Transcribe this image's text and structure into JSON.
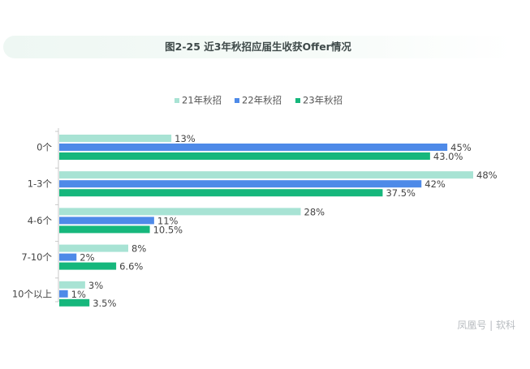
{
  "title": "图2-25 近3年秋招应届生收获Offer情况",
  "watermark": "凤凰号 | 软科",
  "colors": {
    "s21": "#a8e3d4",
    "s22": "#4e8ae8",
    "s23": "#16b77c",
    "axis": "#c8c8c8",
    "text": "#444444"
  },
  "chart_data": {
    "type": "bar",
    "orientation": "horizontal",
    "title": "图2-25 近3年秋招应届生收获Offer情况",
    "legend_position": "top",
    "categories": [
      "0个",
      "1-3个",
      "4-6个",
      "7-10个",
      "10个以上"
    ],
    "series": [
      {
        "name": "21年秋招",
        "values": [
          13,
          48,
          28,
          8,
          3
        ],
        "labels": [
          "13%",
          "48%",
          "28%",
          "8%",
          "3%"
        ]
      },
      {
        "name": "22年秋招",
        "values": [
          45,
          42,
          11,
          2,
          1
        ],
        "labels": [
          "45%",
          "42%",
          "11%",
          "2%",
          "1%"
        ]
      },
      {
        "name": "23年秋招",
        "values": [
          43.0,
          37.5,
          10.5,
          6.6,
          3.5
        ],
        "labels": [
          "43.0%",
          "37.5%",
          "10.5%",
          "6.6%",
          "3.5%"
        ]
      }
    ],
    "xlim": [
      0,
      48
    ],
    "grid": false
  }
}
